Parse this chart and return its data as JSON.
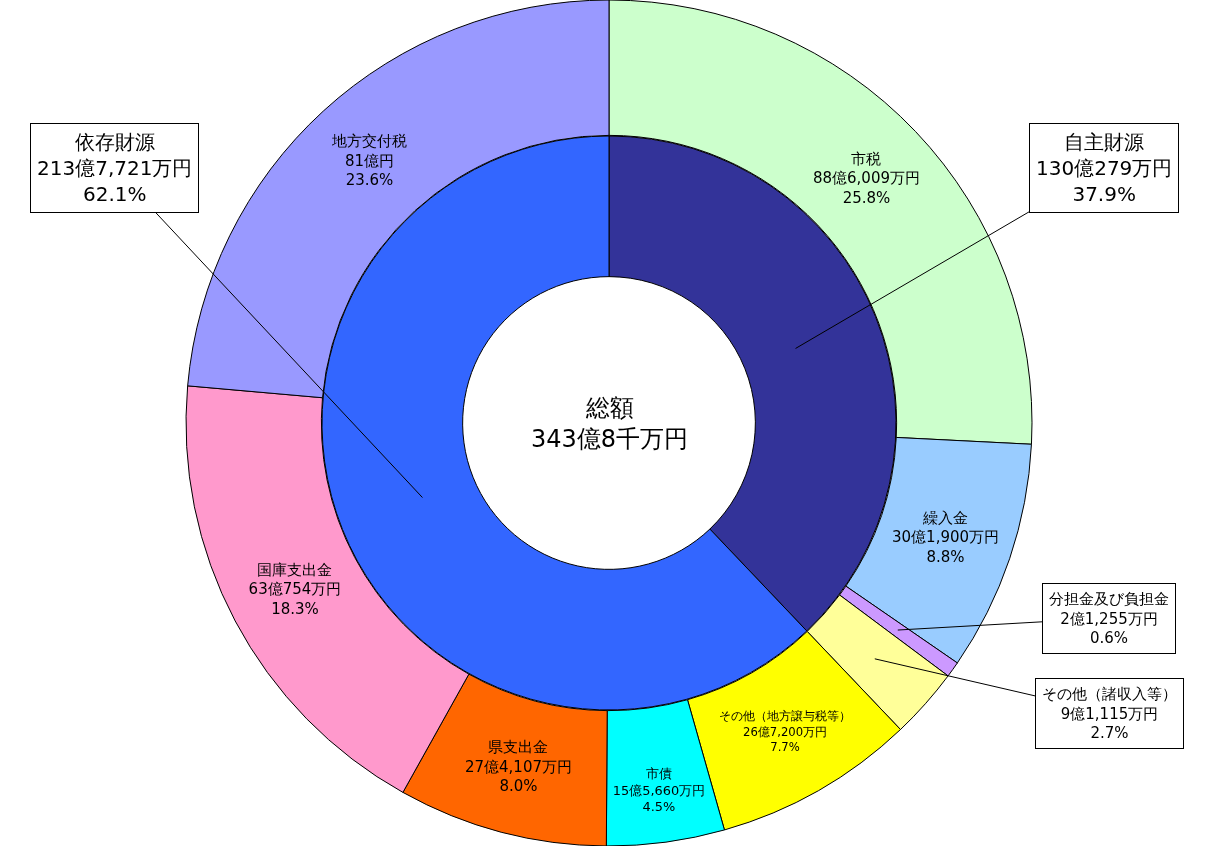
{
  "chart_data": [
    {
      "type": "donut",
      "categories": [
        "市税",
        "繰入金",
        "分担金及び負担金",
        "その他（諸収入等）",
        "その他（地方譲与税等）",
        "市債",
        "県支出金",
        "国庫支出金",
        "地方交付税"
      ],
      "values": [
        25.8,
        8.8,
        0.6,
        2.7,
        7.7,
        4.5,
        8.0,
        18.3,
        23.6
      ],
      "value_labels": [
        "88億6,009万円\n25.8%",
        "30億1,900万円\n8.8%",
        "2億1,255万円\n0.6%",
        "9億1,115万円\n2.7%",
        "26億7,200万円\n7.7%",
        "15億5,660万円\n4.5%",
        "27億4,107万円\n8.0%",
        "63億754万円\n18.3%",
        "81億円\n23.6%"
      ],
      "colors": [
        "#ccffcc",
        "#99ccff",
        "#cc99ff",
        "#ffff99",
        "#ffff00",
        "#00ffff",
        "#ff6600",
        "#ff99cc",
        "#9999ff"
      ]
    },
    {
      "type": "donut",
      "categories": [
        "自主財源",
        "依存財源"
      ],
      "values": [
        37.9,
        62.1
      ],
      "value_labels": [
        "130億279万円\n37.9%",
        "213億7,721万円\n62.1%"
      ],
      "colors": [
        "#333399",
        "#3366ff"
      ],
      "annotations": [
        "総額\n343億8千万円"
      ]
    }
  ]
}
